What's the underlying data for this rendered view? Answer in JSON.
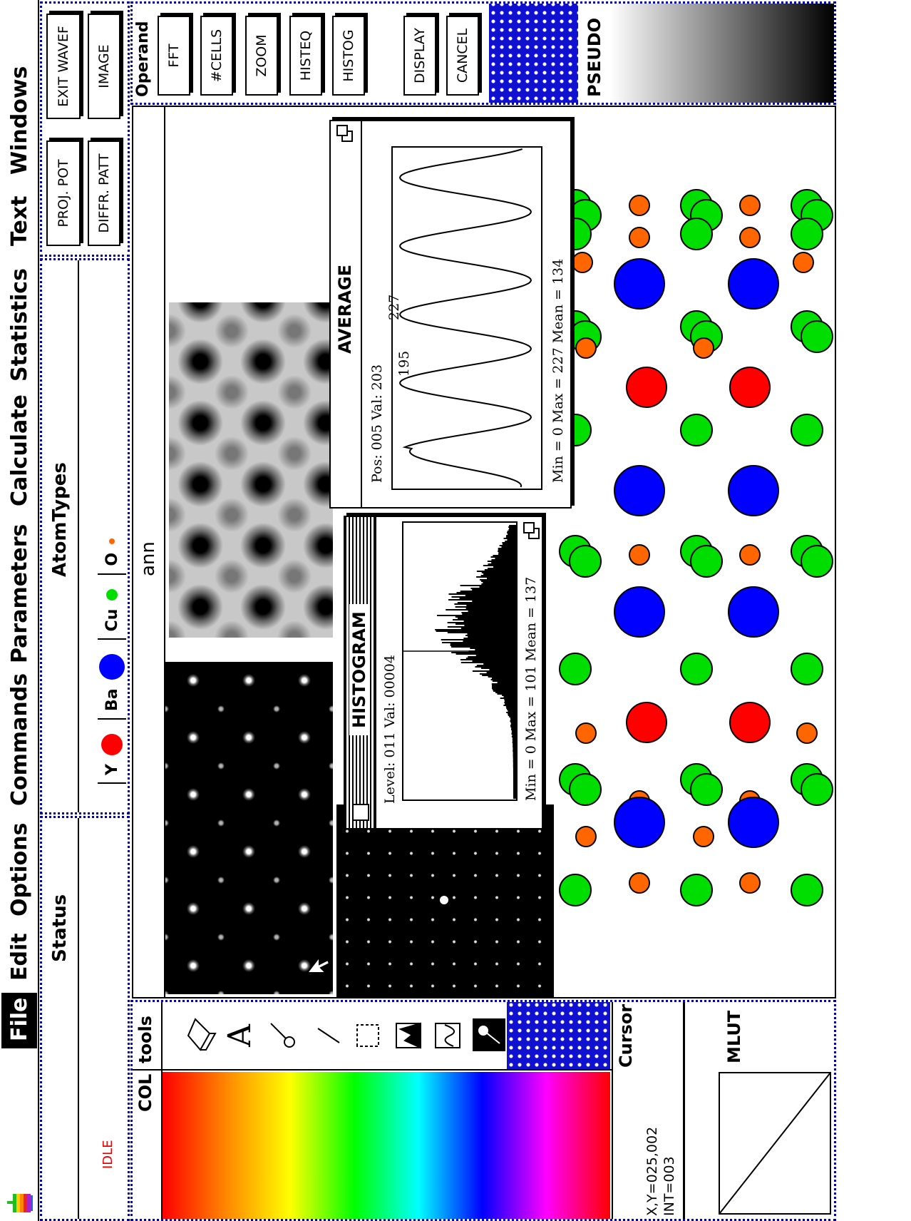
{
  "menu": [
    "File",
    "Edit",
    "Options",
    "Commands",
    "Parameters",
    "Calculate",
    "Statistics",
    "Text",
    "Windows"
  ],
  "status": {
    "title": "Status",
    "state": "IDLE"
  },
  "atom_types": {
    "title": "AtomTypes",
    "items": [
      {
        "label": "Y",
        "color": "#ff0000"
      },
      {
        "label": "Ba",
        "color": "#0000ff"
      },
      {
        "label": "Cu",
        "color": "#00dd00"
      },
      {
        "label": "O",
        "color": "#ff6600"
      }
    ]
  },
  "buttons": [
    "PROJ. POT",
    "EXIT WAVEF",
    "DIFFR. PATT",
    "IMAGE"
  ],
  "tools": {
    "color_header": "COL",
    "title": "tools"
  },
  "cursor": {
    "title": "Cursor",
    "position": "X,Y=025,002",
    "intensity": "INT=003"
  },
  "mlut": {
    "title": "MLUT"
  },
  "operand": {
    "title": "Operand",
    "buttons": [
      "FFT",
      "#CELLS",
      "ZOOM",
      "HISTEQ",
      "HISTOG",
      "DISPLAY",
      "CANCEL"
    ]
  },
  "lut_name": "PSEUDO",
  "window": {
    "title": "ann"
  },
  "histogram": {
    "title": "HISTOGRAM",
    "readout": "Level: 011 Val: 00004",
    "summary": "Min = 0 Max = 101 Mean = 137"
  },
  "average": {
    "title": "AVERAGE",
    "readout": "Pos: 005 Val: 203",
    "summary": "Min = 0 Max = 227 Mean = 134",
    "annotations": [
      "195",
      "227"
    ]
  }
}
